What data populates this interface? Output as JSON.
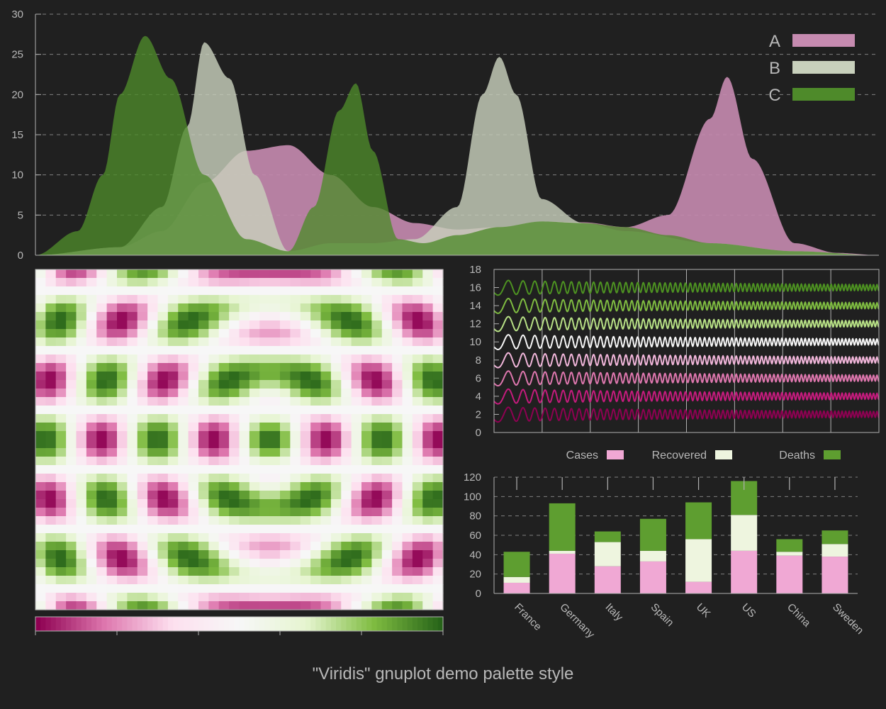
{
  "colors": {
    "background": "#202020",
    "axis": "#b0b0b0",
    "grid": "#808080",
    "pink": "#c68bb0",
    "sage": "#c8d0bc",
    "green": "#4e8a2a"
  },
  "caption": "\"Viridis\" gnuplot demo palette style",
  "palette": {
    "stops": [
      "#8e0152",
      "#de77ae",
      "#fde0ef",
      "#f7f7f7",
      "#e6f5d0",
      "#7fbc41",
      "#276419"
    ]
  },
  "chart_data": [
    {
      "type": "area",
      "xlim": [
        0,
        10
      ],
      "ylim": [
        0,
        30
      ],
      "yticks": [
        "0",
        "5",
        "10",
        "15",
        "20",
        "25",
        "30"
      ],
      "grid": true,
      "legend_position": "top-right",
      "series": [
        {
          "name": "A",
          "color": "#c68bb0",
          "x": [
            0,
            1,
            1.5,
            2,
            2.5,
            3,
            3.5,
            4,
            4.5,
            5,
            5.5,
            6,
            6.5,
            7,
            7.5,
            8,
            8.2,
            8.5,
            9,
            9.5,
            10
          ],
          "y": [
            0,
            1,
            3,
            9,
            13,
            13.7,
            10,
            6,
            4,
            3.2,
            3.5,
            4.2,
            4.1,
            3.5,
            5,
            17,
            22.2,
            12,
            1.5,
            0.3,
            0
          ]
        },
        {
          "name": "B",
          "color": "#c8d0bc",
          "x": [
            0,
            1,
            1.5,
            1.8,
            2,
            2.3,
            2.6,
            3,
            3.5,
            4,
            4.5,
            5,
            5.3,
            5.5,
            5.7,
            6,
            6.5,
            7,
            8,
            9,
            10
          ],
          "y": [
            0,
            1,
            6,
            16,
            26.5,
            22,
            10,
            0.5,
            1.5,
            1.5,
            2,
            6,
            20,
            24.7,
            20,
            7,
            4,
            3,
            1.5,
            0.5,
            0
          ]
        },
        {
          "name": "C",
          "color": "#4e8a2a",
          "x": [
            0,
            0.5,
            0.8,
            1,
            1.3,
            1.6,
            2,
            2.5,
            3,
            3.3,
            3.6,
            3.8,
            4,
            4.3,
            4.6,
            5,
            5.5,
            6,
            6.5,
            7,
            7.5,
            8,
            9,
            10
          ],
          "y": [
            0,
            3,
            10,
            20,
            27.3,
            22,
            10,
            2,
            0.5,
            6,
            18,
            21.4,
            13,
            2,
            1.5,
            2.5,
            3.5,
            4.2,
            4,
            3.5,
            2.5,
            1.5,
            0.5,
            0
          ]
        }
      ]
    },
    {
      "type": "heatmap",
      "description_hidden": false,
      "colorbar_ticks": 6
    },
    {
      "type": "line",
      "xlim": [
        0,
        40
      ],
      "ylim": [
        0,
        18
      ],
      "yticks": [
        "0",
        "2",
        "4",
        "6",
        "8",
        "10",
        "12",
        "14",
        "16",
        "18"
      ],
      "offsets": [
        2,
        4,
        6,
        8,
        10,
        12,
        14,
        16
      ],
      "colors": [
        "#8e0152",
        "#c51b7d",
        "#de77ae",
        "#f1b6da",
        "#f7f7f7",
        "#b8e186",
        "#7fbc41",
        "#4d9221"
      ],
      "amplitude_start": 1.0,
      "amplitude_end": 0.35
    },
    {
      "type": "bar",
      "stacked": true,
      "categories": [
        "France",
        "Germany",
        "Italy",
        "Spain",
        "UK",
        "US",
        "China",
        "Sweden"
      ],
      "ylim": [
        0,
        120
      ],
      "yticks": [
        "0",
        "20",
        "40",
        "60",
        "80",
        "100",
        "120"
      ],
      "legend_position": "top",
      "series": [
        {
          "name": "Cases",
          "color": "#f0a8d4",
          "values": [
            11,
            41,
            28,
            33,
            12,
            44,
            39,
            38
          ]
        },
        {
          "name": "Recovered",
          "color": "#eef5df",
          "values": [
            6,
            3,
            25,
            11,
            44,
            37,
            4,
            13
          ]
        },
        {
          "name": "Deaths",
          "color": "#5e9e30",
          "values": [
            26,
            49,
            11,
            33,
            38,
            35,
            13,
            14
          ]
        }
      ]
    }
  ]
}
